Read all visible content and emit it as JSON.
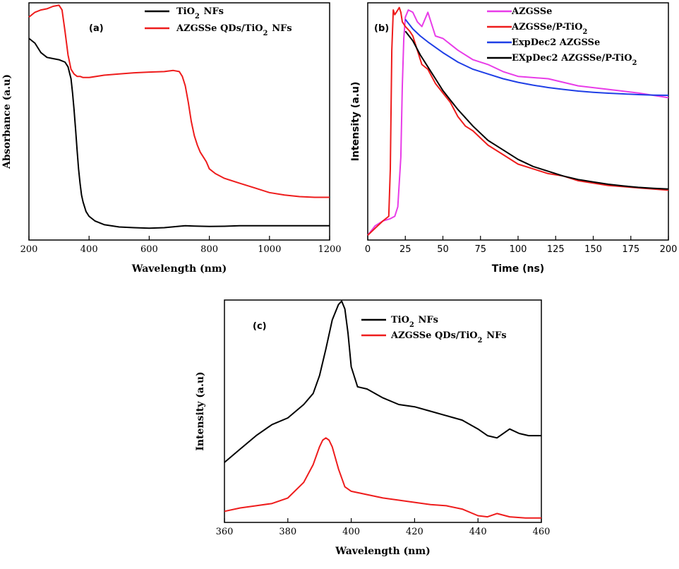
{
  "chart_data": [
    {
      "id": "a",
      "type": "line",
      "panel_label": "(a)",
      "xlabel": "Wavelength (nm)",
      "ylabel": "Absorbance (a.u)",
      "xlim": [
        200,
        1200
      ],
      "ylim": [
        0,
        100
      ],
      "xticks": [
        200,
        400,
        600,
        800,
        1000,
        1200
      ],
      "xtick_labels": [
        "200",
        "400",
        "600",
        "800",
        "1000",
        "1200"
      ],
      "legend": {
        "loc": "top-right",
        "entries": [
          "TiO2 NFs",
          "AZGSSe QDs/TiO2 NFs"
        ]
      },
      "series": [
        {
          "name": "TiO2 NFs",
          "color": "#000000",
          "x": [
            200,
            220,
            240,
            260,
            280,
            300,
            320,
            330,
            340,
            345,
            350,
            355,
            360,
            365,
            370,
            375,
            380,
            390,
            400,
            420,
            450,
            500,
            550,
            600,
            650,
            700,
            720,
            750,
            800,
            850,
            900,
            950,
            1000,
            1050,
            1100,
            1150,
            1200
          ],
          "y": [
            85,
            83,
            79,
            77,
            76.5,
            76,
            75,
            73,
            68,
            62,
            55,
            47,
            38,
            30,
            24,
            19,
            16,
            12,
            10,
            8,
            6.5,
            5.5,
            5.2,
            5,
            5.2,
            5.8,
            6,
            5.9,
            5.7,
            5.8,
            6,
            6,
            6,
            6,
            6,
            6,
            6
          ]
        },
        {
          "name": "AZGSSe QDs/TiO2 NFs",
          "color": "#ee1c1c",
          "x": [
            200,
            220,
            240,
            260,
            280,
            300,
            310,
            320,
            330,
            340,
            350,
            360,
            370,
            380,
            400,
            450,
            500,
            550,
            600,
            650,
            680,
            700,
            710,
            720,
            730,
            740,
            750,
            760,
            770,
            780,
            790,
            800,
            820,
            850,
            900,
            950,
            1000,
            1050,
            1100,
            1150,
            1200
          ],
          "y": [
            94,
            96,
            97,
            97.5,
            98.5,
            99,
            97,
            88,
            78,
            72,
            70,
            69,
            69,
            68.5,
            68.5,
            69.5,
            70,
            70.5,
            70.8,
            71,
            71.5,
            71,
            69,
            65,
            58,
            50,
            44,
            40,
            37,
            35,
            33,
            30,
            28,
            26,
            24,
            22,
            20,
            19,
            18.3,
            18,
            18
          ]
        }
      ]
    },
    {
      "id": "b",
      "type": "line",
      "panel_label": "(b)",
      "xlabel": "Time (ns)",
      "ylabel": "Intensity (a.u)",
      "xlim": [
        0,
        200
      ],
      "ylim": [
        0,
        100
      ],
      "xticks": [
        0,
        25,
        50,
        75,
        100,
        125,
        150,
        175,
        200
      ],
      "xtick_labels": [
        "0",
        "25",
        "50",
        "75",
        "100",
        "125",
        "150",
        "175",
        "200"
      ],
      "legend": {
        "loc": "top-right",
        "entries": [
          "AZGSSe",
          "AZGSSe/P-TiO2",
          "ExpDec2 AZGSSe",
          "EXpDec2 AZGSSe/P-TiO2"
        ]
      },
      "series": [
        {
          "name": "AZGSSe",
          "color": "#e83ce8",
          "x": [
            0,
            5,
            10,
            15,
            18,
            20,
            22,
            23,
            24,
            25,
            27,
            30,
            33,
            36,
            40,
            45,
            50,
            60,
            70,
            80,
            90,
            100,
            120,
            140,
            160,
            180,
            200
          ],
          "y": [
            2,
            6,
            8,
            9,
            10,
            14,
            35,
            65,
            85,
            94,
            97,
            96,
            92,
            90,
            96,
            86,
            85,
            80,
            76,
            74,
            71,
            69,
            68,
            65,
            63.5,
            62,
            60
          ]
        },
        {
          "name": "AZGSSe/P-TiO2",
          "color": "#ee1c1c",
          "x": [
            0,
            5,
            10,
            14,
            15,
            16,
            17,
            18,
            19,
            20,
            21,
            22,
            23,
            25,
            28,
            30,
            33,
            36,
            40,
            45,
            50,
            55,
            60,
            65,
            70,
            80,
            90,
            100,
            110,
            120,
            130,
            140,
            150,
            160,
            170,
            180,
            190,
            200
          ],
          "y": [
            2,
            5,
            8,
            10,
            30,
            80,
            97,
            95,
            96,
            97,
            98,
            96,
            92,
            90,
            88,
            86,
            80,
            74,
            72,
            66,
            62,
            58,
            52,
            48,
            46,
            40,
            36,
            32,
            30,
            28,
            27,
            25,
            24,
            23,
            22.5,
            22,
            21.5,
            21
          ]
        },
        {
          "name": "ExpDec2 AZGSSe",
          "color": "#1f3fe6",
          "x": [
            25,
            30,
            35,
            40,
            50,
            60,
            70,
            80,
            90,
            100,
            110,
            120,
            130,
            140,
            150,
            160,
            170,
            180,
            190,
            200
          ],
          "y": [
            93,
            89,
            86,
            83.5,
            79,
            75,
            72,
            70,
            68,
            66.5,
            65.3,
            64.3,
            63.5,
            62.8,
            62.3,
            61.9,
            61.6,
            61.3,
            61.1,
            61
          ]
        },
        {
          "name": "EXpDec2 AZGSSe/P-TiO2",
          "color": "#000000",
          "x": [
            25,
            30,
            35,
            40,
            45,
            50,
            55,
            60,
            70,
            80,
            90,
            100,
            110,
            120,
            130,
            140,
            150,
            160,
            170,
            180,
            190,
            200
          ],
          "y": [
            88,
            84,
            78,
            73,
            68,
            63,
            59,
            55,
            48,
            42,
            38,
            34,
            31,
            29,
            27,
            25.5,
            24.5,
            23.5,
            22.8,
            22.2,
            21.8,
            21.5
          ]
        }
      ]
    },
    {
      "id": "c",
      "type": "line",
      "panel_label": "(c)",
      "xlabel": "Wavelength (nm)",
      "ylabel": "Intensity (a.u)",
      "xlim": [
        360,
        460
      ],
      "ylim": [
        0,
        100
      ],
      "xticks": [
        360,
        380,
        400,
        420,
        440,
        460
      ],
      "xtick_labels": [
        "360",
        "380",
        "400",
        "420",
        "440",
        "460"
      ],
      "legend": {
        "loc": "top-left",
        "entries": [
          "TiO2 NFs",
          "AZGSSe QDs/TiO2 NFs"
        ]
      },
      "series": [
        {
          "name": "TiO2 NFs",
          "color": "#000000",
          "x": [
            360,
            365,
            370,
            375,
            380,
            385,
            388,
            390,
            392,
            394,
            396,
            397,
            398,
            399,
            400,
            402,
            405,
            410,
            415,
            420,
            425,
            430,
            435,
            440,
            443,
            446,
            450,
            453,
            456,
            460
          ],
          "y": [
            27,
            33,
            39,
            44,
            47,
            53,
            58,
            66,
            78,
            91,
            98,
            99.5,
            96,
            85,
            70,
            61,
            60,
            56,
            53,
            52,
            50,
            48,
            46,
            42,
            39,
            38,
            42,
            40,
            39,
            39
          ]
        },
        {
          "name": "AZGSSe QDs/TiO2 NFs",
          "color": "#ee1c1c",
          "x": [
            360,
            365,
            370,
            375,
            380,
            385,
            388,
            390,
            391,
            392,
            393,
            394,
            396,
            398,
            400,
            405,
            410,
            415,
            420,
            425,
            430,
            435,
            440,
            443,
            446,
            450,
            455,
            460
          ],
          "y": [
            5,
            6.5,
            7.5,
            8.5,
            11,
            18,
            26,
            34,
            37,
            38,
            37,
            34,
            24,
            16,
            14,
            12.5,
            11,
            10,
            9,
            8,
            7.5,
            6,
            3,
            2.5,
            4,
            2.5,
            2,
            2
          ]
        }
      ]
    }
  ]
}
